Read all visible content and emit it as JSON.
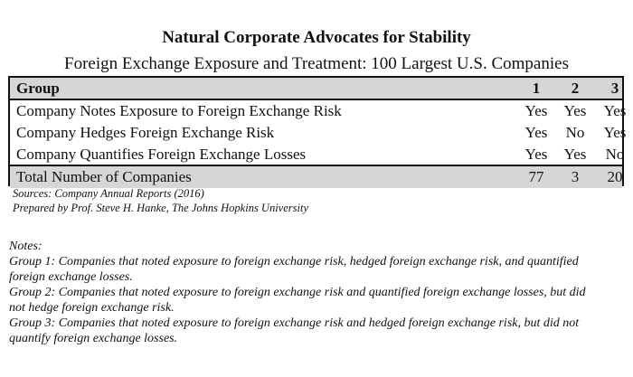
{
  "title": "Natural Corporate Advocates for Stability",
  "subtitle": "Foreign Exchange Exposure and Treatment: 100 Largest U.S. Companies",
  "table": {
    "header": {
      "label": "Group",
      "cols": [
        "1",
        "2",
        "3"
      ]
    },
    "rows": [
      {
        "label": "Company Notes Exposure to Foreign Exchange Risk",
        "values": [
          "Yes",
          "Yes",
          "Yes"
        ]
      },
      {
        "label": "Company Hedges Foreign Exchange Risk",
        "values": [
          "Yes",
          "No",
          "Yes"
        ]
      },
      {
        "label": "Company Quantifies Foreign Exchange Losses",
        "values": [
          "Yes",
          "Yes",
          "No"
        ]
      }
    ],
    "total": {
      "label": "Total Number of Companies",
      "values": [
        "77",
        "3",
        "20"
      ]
    }
  },
  "sources": {
    "line1": "Sources: Company Annual Reports (2016)",
    "line2": "Prepared by Prof. Steve H. Hanke, The Johns Hopkins University"
  },
  "notes": {
    "heading": "Notes:",
    "items": [
      "Group 1: Companies that noted exposure to foreign exchange risk, hedged foreign exchange risk, and quantified foreign exchange losses.",
      "Group 2: Companies that noted exposure to foreign exchange risk and quantified foreign exchange losses, but did not hedge foreign exchange risk.",
      "Group 3: Companies that noted exposure to foreign exchange risk and hedged foreign exchange risk, but did not quantify foreign exchange losses."
    ]
  }
}
